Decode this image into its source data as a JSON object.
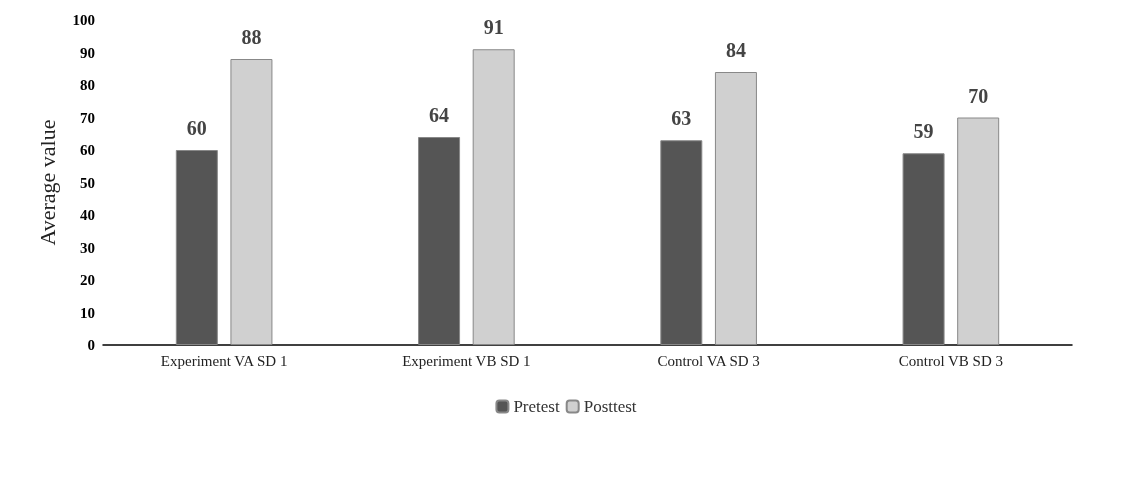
{
  "chart_data": {
    "type": "bar",
    "ylabel": "Average value",
    "categories": [
      "Experiment VA SD 1",
      "Experiment VB SD 1",
      "Control VA SD 3",
      "Control VB SD 3"
    ],
    "series": [
      {
        "name": "Pretest",
        "color": "#555555",
        "values": [
          60,
          64,
          63,
          59
        ]
      },
      {
        "name": "Posttest",
        "color": "#d0d0d0",
        "values": [
          88,
          91,
          84,
          70
        ]
      }
    ],
    "ylim": [
      0,
      100
    ],
    "yticks": [
      0,
      10,
      20,
      30,
      40,
      50,
      60,
      70,
      80,
      90,
      100
    ],
    "data_labels": true,
    "grid": false,
    "legend": "bottom"
  }
}
